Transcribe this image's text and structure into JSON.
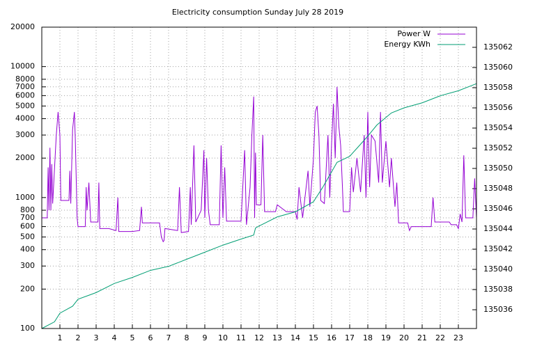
{
  "chart_data": {
    "type": "line",
    "title": "Electricity consumption Sunday July 28 2019",
    "yscale": "log",
    "grid": true,
    "legend": "top-right",
    "xlim": [
      0,
      24
    ],
    "xticks": [
      1,
      2,
      3,
      4,
      5,
      6,
      7,
      8,
      9,
      10,
      11,
      12,
      13,
      14,
      15,
      16,
      17,
      18,
      19,
      20,
      21,
      22,
      23
    ],
    "ylim": [
      100,
      20000
    ],
    "yticks": [
      100,
      200,
      300,
      400,
      500,
      600,
      700,
      800,
      1000,
      2000,
      3000,
      4000,
      5000,
      6000,
      7000,
      8000,
      10000,
      20000
    ],
    "y2lim": [
      135034.14,
      135064
    ],
    "y2ticks": [
      135036,
      135038,
      135040,
      135042,
      135044,
      135046,
      135048,
      135050,
      135052,
      135054,
      135056,
      135058,
      135060,
      135062
    ],
    "series": [
      {
        "name": "Power W",
        "color": "#9400d3",
        "x": [
          0,
          0.3,
          0.35,
          0.4,
          0.45,
          0.5,
          0.55,
          0.6,
          0.8,
          0.9,
          1.0,
          1.05,
          1.5,
          1.55,
          1.6,
          1.7,
          1.8,
          1.85,
          1.95,
          2.0,
          2.4,
          2.45,
          2.5,
          2.6,
          2.7,
          3.1,
          3.15,
          3.2,
          3.7,
          4.1,
          4.2,
          4.25,
          5.0,
          5.4,
          5.5,
          5.55,
          6.5,
          6.6,
          6.7,
          6.75,
          6.8,
          7.5,
          7.6,
          7.7,
          8.1,
          8.2,
          8.25,
          8.4,
          8.5,
          8.8,
          8.95,
          9.0,
          9.1,
          9.2,
          9.3,
          9.8,
          9.9,
          10.0,
          10.1,
          10.2,
          11.0,
          11.2,
          11.3,
          11.5,
          11.6,
          11.7,
          11.75,
          11.8,
          11.85,
          12.1,
          12.2,
          12.3,
          12.9,
          13.0,
          13.5,
          14.0,
          14.1,
          14.2,
          14.4,
          14.7,
          14.8,
          15.0,
          15.1,
          15.2,
          15.3,
          15.4,
          15.6,
          15.8,
          15.9,
          16.0,
          16.1,
          16.2,
          16.3,
          16.4,
          16.5,
          16.6,
          16.65,
          17.0,
          17.1,
          17.2,
          17.4,
          17.6,
          17.8,
          17.9,
          18.0,
          18.1,
          18.2,
          18.4,
          18.6,
          18.7,
          18.8,
          19.0,
          19.2,
          19.3,
          19.5,
          19.6,
          19.7,
          20.2,
          20.3,
          20.4,
          21.5,
          21.6,
          21.7,
          22.5,
          22.6,
          22.9,
          23.0,
          23.1,
          23.2,
          23.3,
          23.4,
          23.8,
          23.9,
          24.0
        ],
        "values": [
          700,
          700,
          1700,
          800,
          2400,
          800,
          1800,
          900,
          3000,
          4500,
          3000,
          950,
          950,
          1600,
          900,
          3300,
          4500,
          2800,
          700,
          600,
          600,
          1200,
          800,
          1300,
          650,
          650,
          1300,
          580,
          580,
          560,
          1000,
          550,
          550,
          560,
          850,
          640,
          640,
          500,
          460,
          470,
          580,
          560,
          1200,
          540,
          550,
          1200,
          620,
          2500,
          650,
          800,
          2300,
          700,
          2000,
          800,
          620,
          620,
          2500,
          700,
          1700,
          660,
          660,
          2300,
          620,
          1200,
          3000,
          5900,
          700,
          2200,
          880,
          880,
          3000,
          780,
          780,
          880,
          780,
          780,
          680,
          1200,
          700,
          1600,
          850,
          2000,
          4500,
          5000,
          3000,
          950,
          900,
          3000,
          1000,
          2600,
          5200,
          2000,
          7000,
          3500,
          2500,
          1200,
          780,
          780,
          1700,
          1100,
          2000,
          1100,
          3000,
          1000,
          4500,
          1200,
          3000,
          2700,
          1300,
          4500,
          1300,
          2700,
          1200,
          2000,
          850,
          1300,
          640,
          640,
          560,
          600,
          600,
          1000,
          650,
          650,
          620,
          620,
          580,
          750,
          650,
          2100,
          700,
          700,
          1400,
          700
        ]
      },
      {
        "name": "Energy KWh",
        "color": "#009e73",
        "axis": "y2",
        "x": [
          0,
          0.7,
          1,
          1.7,
          2,
          3,
          4,
          5,
          6,
          7,
          8,
          9,
          10,
          11,
          11.7,
          11.8,
          12,
          13,
          14,
          15,
          15.5,
          16.3,
          17,
          17.5,
          18,
          18.5,
          19.3,
          20,
          21,
          22,
          23,
          24
        ],
        "values": [
          135034.14,
          135034.8,
          135035.66,
          135036.35,
          135037.04,
          135037.7,
          135038.6,
          135039.2,
          135039.9,
          135040.3,
          135041,
          135041.7,
          135042.4,
          135043,
          135043.4,
          135044.1,
          135044.3,
          135045.2,
          135045.7,
          135046.7,
          135048.1,
          135050.6,
          135051.2,
          135052.2,
          135053.2,
          135054.3,
          135055.5,
          135056,
          135056.5,
          135057.2,
          135057.7,
          135058.4
        ]
      }
    ]
  }
}
